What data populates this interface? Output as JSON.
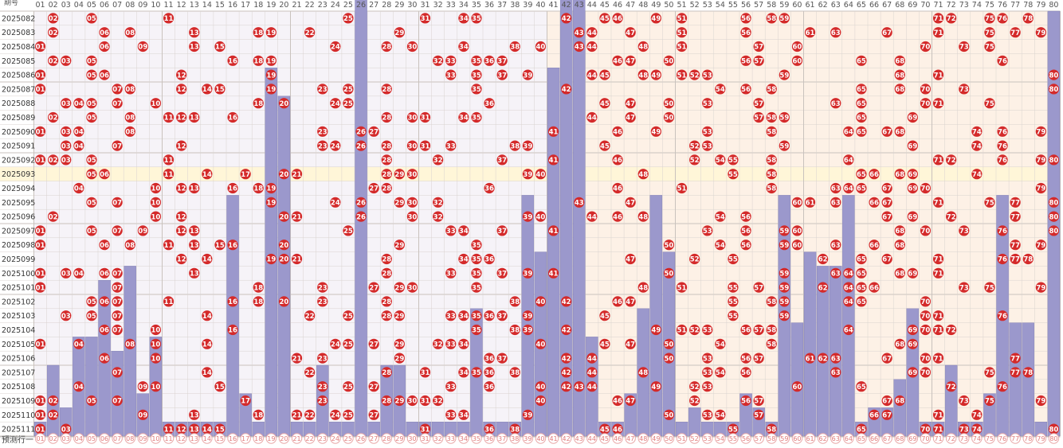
{
  "header": {
    "top_left_label": "期号",
    "title": ""
  },
  "footer": {
    "row_label": "预测行一"
  },
  "colors": {
    "ball": "#d42a2a",
    "ball_text": "#ffffff",
    "bar": "#9b98cc",
    "bar_border": "#6f6ca9",
    "bg_left": "#f6f3f8",
    "bg_right": "#fdf1e6",
    "highlight_row": "#fff6d8",
    "grid": "#d9d3cf",
    "label_text": "#333333",
    "header_text": "#555555"
  },
  "chart_data": {
    "type": "table",
    "title": "",
    "x_numbers": [
      "01",
      "02",
      "03",
      "04",
      "05",
      "06",
      "07",
      "08",
      "09",
      "10",
      "11",
      "12",
      "13",
      "14",
      "15",
      "16",
      "17",
      "18",
      "19",
      "20",
      "21",
      "22",
      "23",
      "24",
      "25",
      "26",
      "27",
      "28",
      "29",
      "30",
      "31",
      "32",
      "33",
      "34",
      "35",
      "36",
      "37",
      "38",
      "39",
      "40",
      "41",
      "42",
      "43",
      "44",
      "45",
      "46",
      "47",
      "48",
      "49",
      "50",
      "51",
      "52",
      "53",
      "54",
      "55",
      "56",
      "57",
      "58",
      "59",
      "60",
      "61",
      "62",
      "63",
      "64",
      "65",
      "66",
      "67",
      "68",
      "69",
      "70",
      "71",
      "72",
      "73",
      "74",
      "75",
      "76",
      "77",
      "78",
      "79",
      "80"
    ],
    "highlight_period": "2025093",
    "periods": [
      {
        "id": "2025082",
        "draw": [
          2,
          5,
          11,
          25,
          31,
          34,
          35,
          42,
          45,
          46,
          49,
          51,
          56,
          58,
          59,
          71,
          72,
          75,
          76,
          78
        ]
      },
      {
        "id": "2025083",
        "draw": [
          2,
          6,
          8,
          13,
          18,
          19,
          22,
          29,
          43,
          44,
          47,
          51,
          56,
          61,
          63,
          67,
          71,
          75,
          77,
          79
        ]
      },
      {
        "id": "2025084",
        "draw": [
          1,
          6,
          9,
          13,
          15,
          24,
          28,
          30,
          34,
          38,
          40,
          43,
          44,
          48,
          51,
          57,
          60,
          70,
          73,
          75
        ]
      },
      {
        "id": "2025085",
        "draw": [
          2,
          3,
          5,
          16,
          18,
          19,
          32,
          33,
          35,
          36,
          37,
          46,
          47,
          50,
          56,
          57,
          60,
          65,
          68,
          76
        ]
      },
      {
        "id": "2025086",
        "draw": [
          1,
          5,
          6,
          12,
          19,
          33,
          35,
          37,
          39,
          44,
          45,
          48,
          49,
          51,
          52,
          53,
          59,
          68,
          71,
          80
        ]
      },
      {
        "id": "2025087",
        "draw": [
          1,
          7,
          8,
          12,
          14,
          15,
          19,
          23,
          25,
          28,
          35,
          42,
          54,
          56,
          58,
          65,
          68,
          70,
          73,
          80
        ]
      },
      {
        "id": "2025088",
        "draw": [
          3,
          4,
          5,
          7,
          10,
          18,
          20,
          24,
          25,
          36,
          45,
          47,
          50,
          53,
          57,
          63,
          65,
          70,
          71,
          75
        ]
      },
      {
        "id": "2025089",
        "draw": [
          2,
          5,
          8,
          11,
          12,
          13,
          16,
          28,
          30,
          31,
          34,
          35,
          44,
          47,
          50,
          57,
          58,
          59,
          65,
          69
        ]
      },
      {
        "id": "2025090",
        "draw": [
          1,
          3,
          4,
          8,
          23,
          26,
          27,
          41,
          46,
          49,
          53,
          58,
          64,
          65,
          67,
          68,
          74,
          76,
          79
        ]
      },
      {
        "id": "2025091",
        "draw": [
          3,
          4,
          7,
          12,
          23,
          24,
          26,
          28,
          30,
          31,
          33,
          38,
          39,
          45,
          52,
          53,
          59,
          69,
          74,
          76
        ]
      },
      {
        "id": "2025092",
        "draw": [
          1,
          2,
          3,
          5,
          11,
          28,
          32,
          37,
          41,
          46,
          52,
          54,
          55,
          58,
          64,
          71,
          72,
          76,
          79,
          80
        ]
      },
      {
        "id": "2025093",
        "draw": [
          5,
          6,
          11,
          14,
          17,
          20,
          21,
          28,
          29,
          30,
          39,
          40,
          48,
          55,
          58,
          65,
          66,
          68,
          69,
          74
        ]
      },
      {
        "id": "2025094",
        "draw": [
          4,
          10,
          12,
          13,
          16,
          18,
          19,
          27,
          28,
          36,
          46,
          51,
          58,
          63,
          64,
          65,
          67,
          69,
          70,
          79
        ]
      },
      {
        "id": "2025095",
        "draw": [
          5,
          7,
          10,
          19,
          24,
          26,
          29,
          30,
          32,
          43,
          47,
          60,
          61,
          63,
          66,
          67,
          71,
          75,
          77,
          80
        ]
      },
      {
        "id": "2025096",
        "draw": [
          2,
          10,
          12,
          20,
          21,
          26,
          30,
          32,
          39,
          40,
          44,
          46,
          48,
          54,
          56,
          67,
          69,
          72,
          77,
          80
        ]
      },
      {
        "id": "2025097",
        "draw": [
          1,
          5,
          7,
          9,
          12,
          13,
          25,
          33,
          34,
          37,
          41,
          53,
          56,
          59,
          60,
          68,
          70,
          73,
          76,
          80
        ]
      },
      {
        "id": "2025098",
        "draw": [
          1,
          6,
          8,
          11,
          13,
          15,
          16,
          20,
          29,
          35,
          50,
          54,
          56,
          59,
          60,
          63,
          66,
          68,
          77,
          79
        ]
      },
      {
        "id": "2025099",
        "draw": [
          12,
          14,
          19,
          20,
          21,
          28,
          34,
          35,
          36,
          47,
          52,
          55,
          62,
          65,
          67,
          71,
          76,
          77,
          78
        ]
      },
      {
        "id": "2025100",
        "draw": [
          1,
          3,
          4,
          6,
          7,
          13,
          28,
          33,
          35,
          37,
          39,
          41,
          50,
          59,
          63,
          64,
          65,
          68,
          69,
          71
        ]
      },
      {
        "id": "2025101",
        "draw": [
          1,
          7,
          18,
          23,
          27,
          29,
          30,
          35,
          48,
          51,
          55,
          57,
          59,
          62,
          64,
          65,
          66,
          73,
          75,
          79
        ]
      },
      {
        "id": "2025102",
        "draw": [
          5,
          6,
          7,
          11,
          16,
          18,
          20,
          23,
          28,
          38,
          40,
          42,
          46,
          47,
          55,
          58,
          59,
          64,
          65,
          70
        ]
      },
      {
        "id": "2025103",
        "draw": [
          3,
          5,
          7,
          14,
          22,
          25,
          28,
          29,
          33,
          34,
          35,
          36,
          37,
          39,
          45,
          55,
          59,
          70,
          71,
          76
        ]
      },
      {
        "id": "2025104",
        "draw": [
          6,
          7,
          10,
          16,
          35,
          38,
          39,
          42,
          49,
          51,
          52,
          53,
          56,
          57,
          58,
          64,
          69,
          70,
          71,
          72
        ]
      },
      {
        "id": "2025105",
        "draw": [
          1,
          4,
          8,
          10,
          14,
          24,
          25,
          27,
          29,
          32,
          33,
          34,
          40,
          45,
          47,
          50,
          54,
          58,
          68,
          69
        ]
      },
      {
        "id": "2025106",
        "draw": [
          6,
          10,
          21,
          23,
          29,
          36,
          37,
          42,
          44,
          50,
          53,
          56,
          57,
          61,
          62,
          63,
          67,
          70,
          71,
          77
        ]
      },
      {
        "id": "2025107",
        "draw": [
          7,
          14,
          22,
          28,
          31,
          34,
          35,
          36,
          38,
          42,
          44,
          48,
          53,
          54,
          56,
          63,
          69,
          70,
          75,
          77,
          78
        ]
      },
      {
        "id": "2025108",
        "draw": [
          4,
          9,
          10,
          15,
          23,
          25,
          27,
          33,
          36,
          40,
          42,
          43,
          44,
          49,
          52,
          53,
          60,
          65,
          72,
          76
        ]
      },
      {
        "id": "2025109",
        "draw": [
          1,
          2,
          5,
          7,
          17,
          23,
          28,
          29,
          30,
          31,
          32,
          40,
          46,
          47,
          52,
          56,
          57,
          67,
          68,
          73,
          75,
          79
        ]
      },
      {
        "id": "2025110",
        "draw": [
          1,
          2,
          9,
          13,
          18,
          21,
          22,
          24,
          25,
          27,
          33,
          34,
          39,
          50,
          53,
          54,
          57,
          66,
          67,
          71,
          74
        ]
      },
      {
        "id": "2025111",
        "draw": [
          1,
          3,
          11,
          12,
          13,
          14,
          15,
          31,
          36,
          38,
          45,
          46,
          55,
          58,
          65,
          70,
          71,
          73,
          74,
          80
        ]
      }
    ],
    "omission_bars": [
      1,
      5,
      2,
      7,
      7,
      11,
      6,
      12,
      3,
      7,
      1,
      1,
      1,
      1,
      1,
      17,
      3,
      1,
      26,
      24,
      1,
      1,
      5,
      1,
      1,
      32,
      1,
      5,
      5,
      1,
      1,
      1,
      1,
      1,
      9,
      1,
      1,
      1,
      17,
      13,
      26,
      32,
      32,
      7,
      1,
      1,
      3,
      9,
      17,
      13,
      1,
      2,
      1,
      1,
      1,
      3,
      2,
      1,
      17,
      8,
      13,
      12,
      12,
      17,
      1,
      2,
      2,
      4,
      9,
      1,
      1,
      5,
      1,
      1,
      3,
      17,
      8,
      8,
      1,
      30
    ]
  }
}
